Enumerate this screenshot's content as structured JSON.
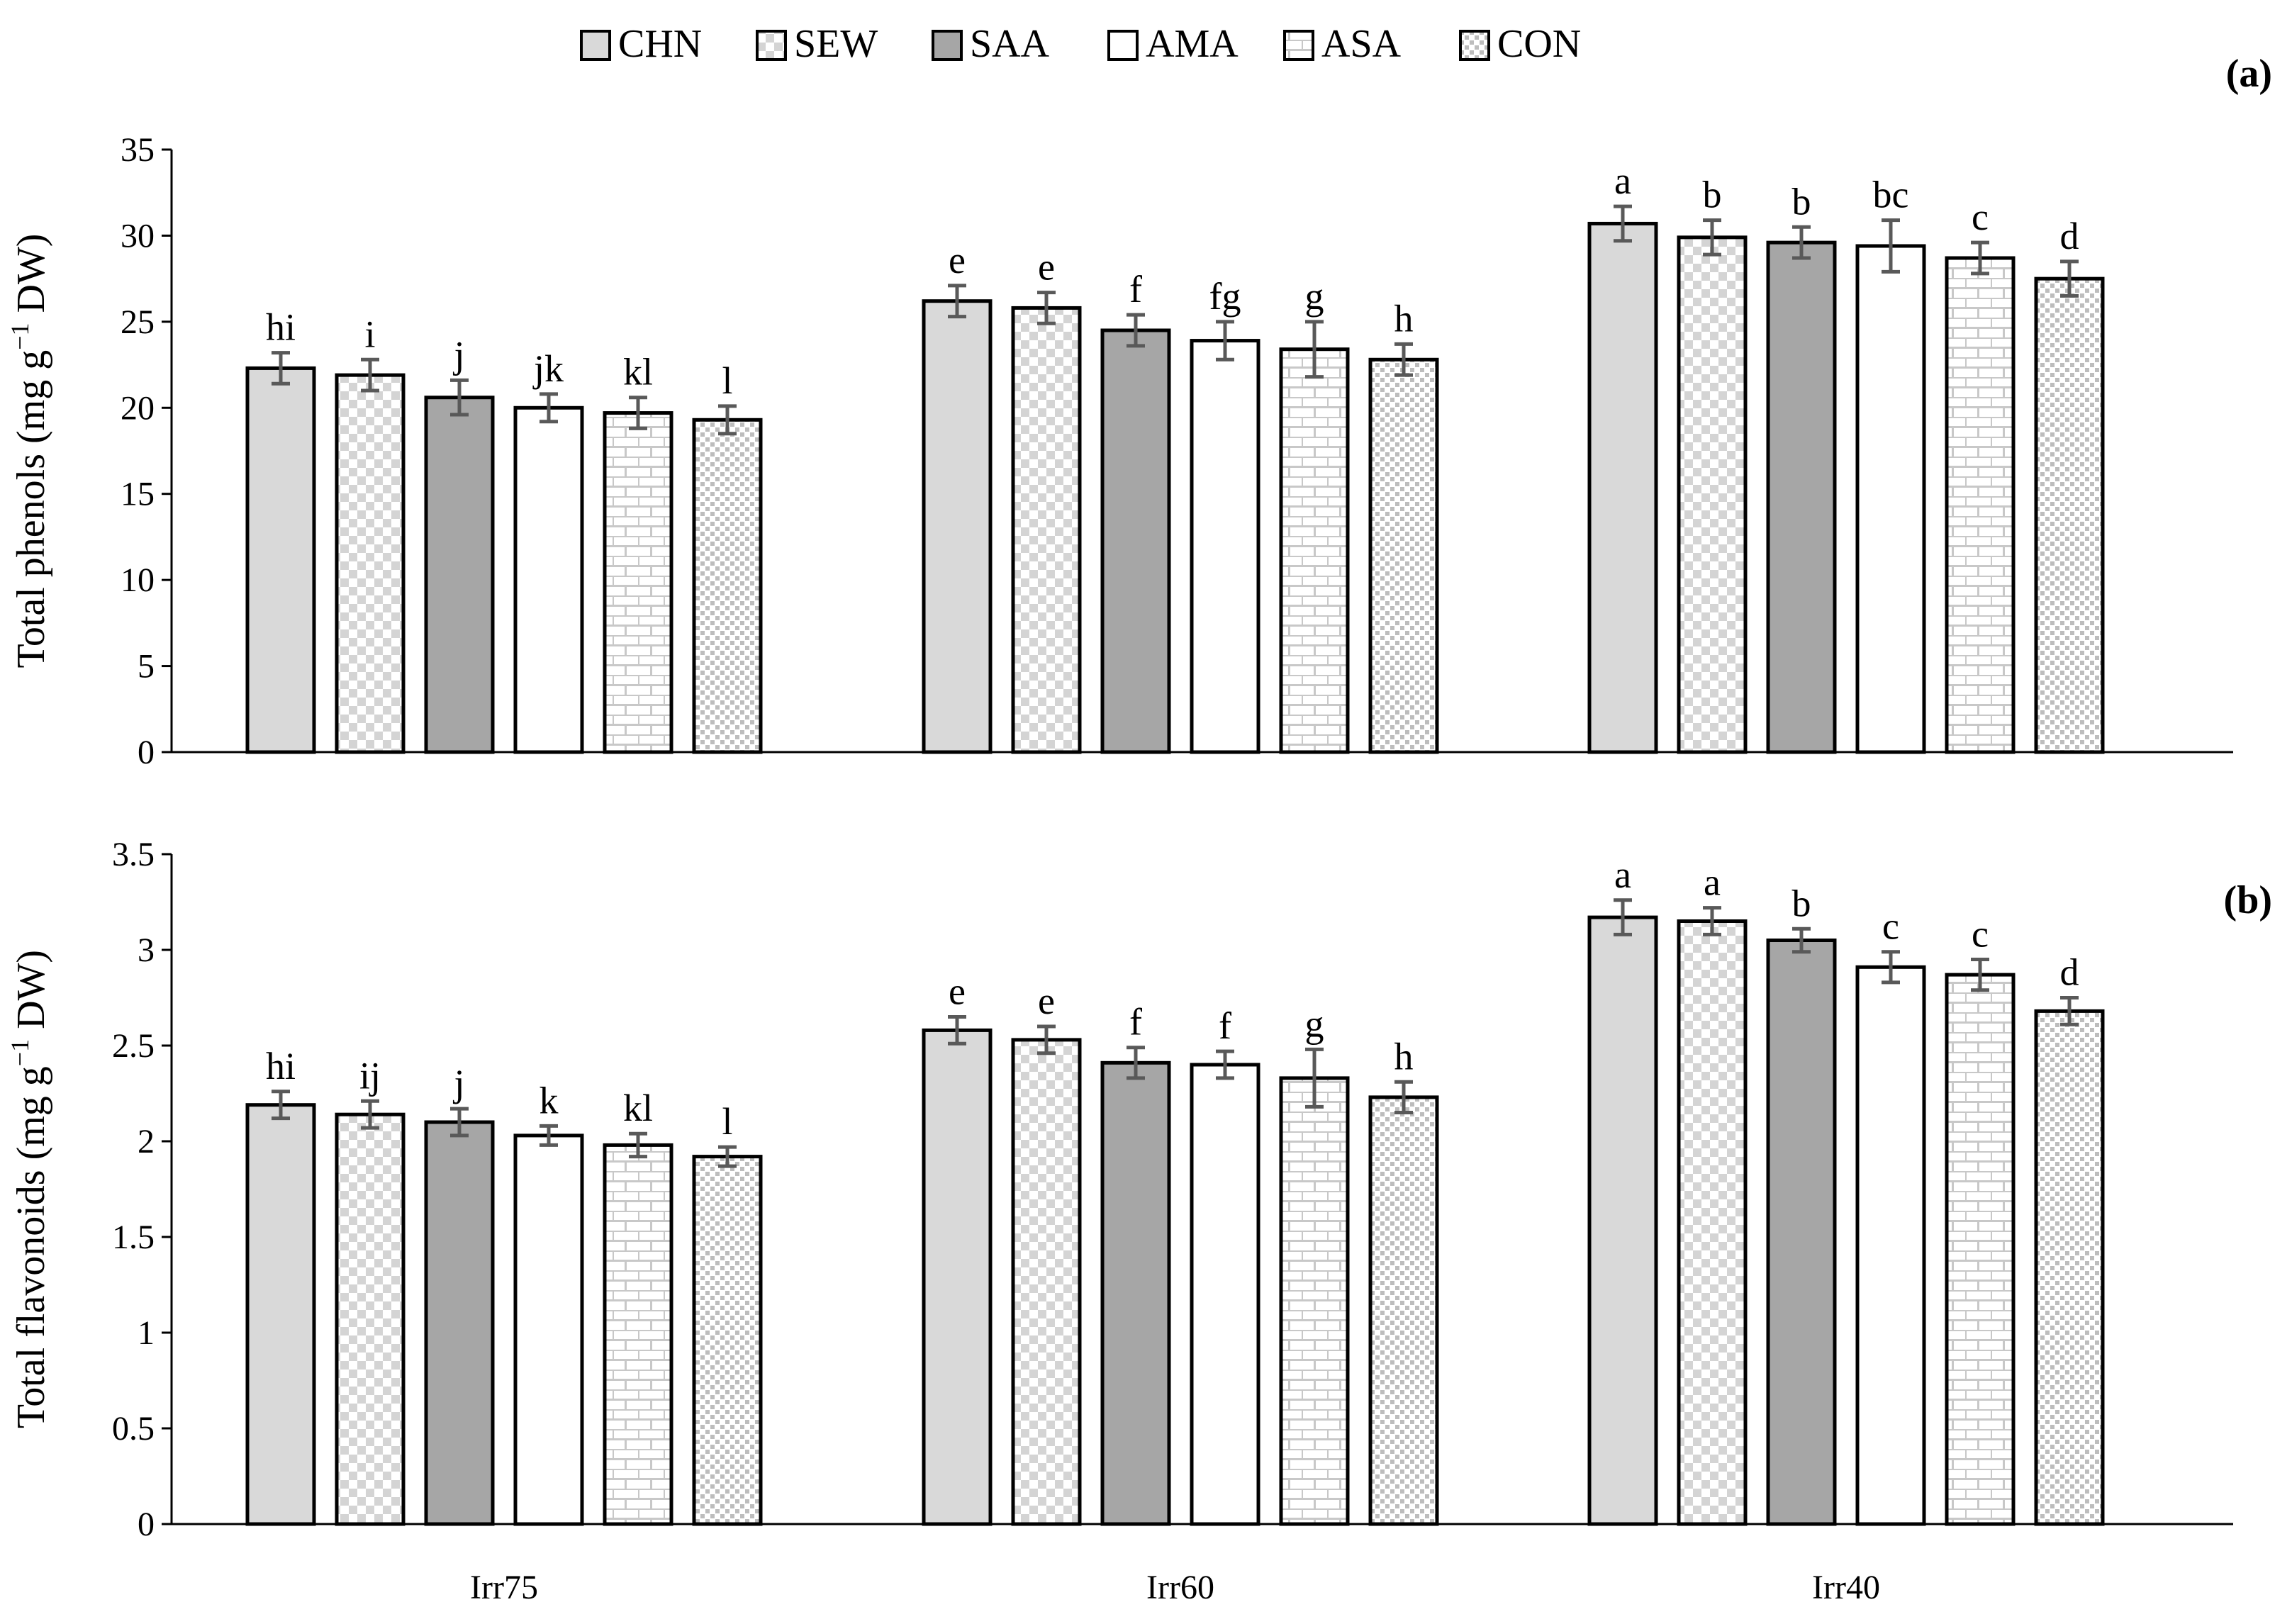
{
  "legend": {
    "items": [
      {
        "label": "CHN",
        "fill": "chn"
      },
      {
        "label": "SEW",
        "fill": "sew"
      },
      {
        "label": "SAA",
        "fill": "saa"
      },
      {
        "label": "AMA",
        "fill": "ama"
      },
      {
        "label": "ASA",
        "fill": "asa"
      },
      {
        "label": "CON",
        "fill": "con"
      }
    ]
  },
  "colors": {
    "chn": "#d9d9d9",
    "saa": "#a6a6a6",
    "ama": "#ffffff",
    "pattern_light": "#d4d4d4",
    "pattern_dark": "#bdbdbd",
    "bar_outline": "#000000",
    "error_bar": "#595959"
  },
  "chart_data": [
    {
      "type": "bar",
      "panel_label": "(a)",
      "ylabel": "Total phenols (mg g−1 DW)",
      "ylim": [
        0,
        35
      ],
      "yticks": [
        0,
        5,
        10,
        15,
        20,
        25,
        30,
        35
      ],
      "categories": [
        "Irr75",
        "Irr60",
        "Irr40"
      ],
      "series": [
        {
          "name": "CHN",
          "values": [
            22.3,
            26.2,
            30.7
          ],
          "errors": [
            0.9,
            0.9,
            1.0
          ],
          "letters": [
            "hi",
            "e",
            "a"
          ]
        },
        {
          "name": "SEW",
          "values": [
            21.9,
            25.8,
            29.9
          ],
          "errors": [
            0.9,
            0.9,
            1.0
          ],
          "letters": [
            "i",
            "e",
            "b"
          ]
        },
        {
          "name": "SAA",
          "values": [
            20.6,
            24.5,
            29.6
          ],
          "errors": [
            1.0,
            0.9,
            0.9
          ],
          "letters": [
            "j",
            "f",
            "b"
          ]
        },
        {
          "name": "AMA",
          "values": [
            20.0,
            23.9,
            29.4
          ],
          "errors": [
            0.8,
            1.1,
            1.5
          ],
          "letters": [
            "jk",
            "fg",
            "bc"
          ]
        },
        {
          "name": "ASA",
          "values": [
            19.7,
            23.4,
            28.7
          ],
          "errors": [
            0.9,
            1.6,
            0.9
          ],
          "letters": [
            "kl",
            "g",
            "c"
          ]
        },
        {
          "name": "CON",
          "values": [
            19.3,
            22.8,
            27.5
          ],
          "errors": [
            0.8,
            0.9,
            1.0
          ],
          "letters": [
            "l",
            "h",
            "d"
          ]
        }
      ]
    },
    {
      "type": "bar",
      "panel_label": "(b)",
      "ylabel": "Total flavonoids (mg g−1 DW)",
      "ylim": [
        0,
        3.5
      ],
      "yticks": [
        0,
        0.5,
        1,
        1.5,
        2,
        2.5,
        3,
        3.5
      ],
      "categories": [
        "Irr75",
        "Irr60",
        "Irr40"
      ],
      "series": [
        {
          "name": "CHN",
          "values": [
            2.19,
            2.58,
            3.17
          ],
          "errors": [
            0.07,
            0.07,
            0.09
          ],
          "letters": [
            "hi",
            "e",
            "a"
          ]
        },
        {
          "name": "SEW",
          "values": [
            2.14,
            2.53,
            3.15
          ],
          "errors": [
            0.07,
            0.07,
            0.07
          ],
          "letters": [
            "ij",
            "e",
            "a"
          ]
        },
        {
          "name": "SAA",
          "values": [
            2.1,
            2.41,
            3.05
          ],
          "errors": [
            0.07,
            0.08,
            0.06
          ],
          "letters": [
            "j",
            "f",
            "b"
          ]
        },
        {
          "name": "AMA",
          "values": [
            2.03,
            2.4,
            2.91
          ],
          "errors": [
            0.05,
            0.07,
            0.08
          ],
          "letters": [
            "k",
            "f",
            "c"
          ]
        },
        {
          "name": "ASA",
          "values": [
            1.98,
            2.33,
            2.87
          ],
          "errors": [
            0.06,
            0.15,
            0.08
          ],
          "letters": [
            "kl",
            "g",
            "c"
          ]
        },
        {
          "name": "CON",
          "values": [
            1.92,
            2.23,
            2.68
          ],
          "errors": [
            0.05,
            0.08,
            0.07
          ],
          "letters": [
            "l",
            "h",
            "d"
          ]
        }
      ]
    }
  ]
}
